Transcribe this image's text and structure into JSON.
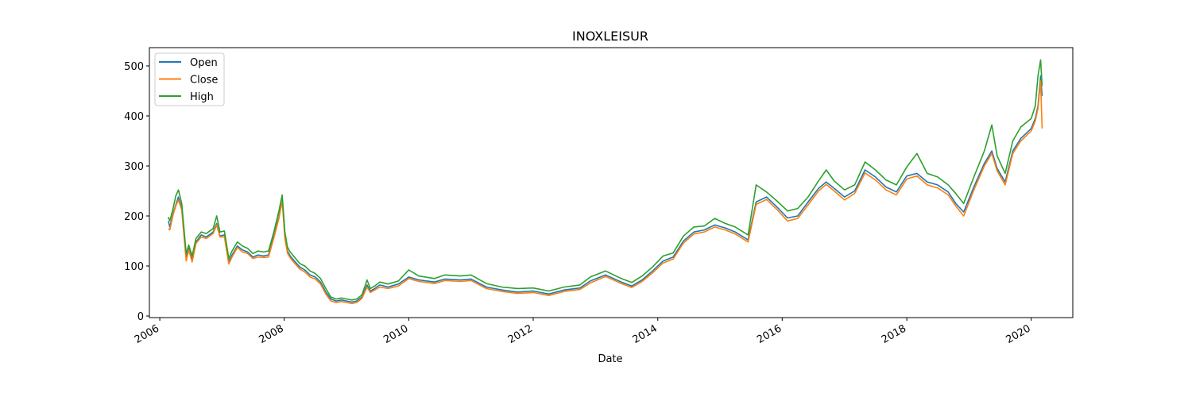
{
  "chart_data": {
    "type": "line",
    "title": "INOXLEISUR",
    "xlabel": "Date",
    "ylabel": "",
    "xlim": [
      "2005-11-01",
      "2020-09-01"
    ],
    "ylim": [
      0,
      530
    ],
    "x_ticks": [
      "2006",
      "2008",
      "2010",
      "2012",
      "2014",
      "2016",
      "2018",
      "2020"
    ],
    "y_ticks": [
      0,
      100,
      200,
      300,
      400,
      500
    ],
    "grid": false,
    "legend_position": "upper-left",
    "x": [
      "2006-02-20",
      "2006-03-01",
      "2006-03-20",
      "2006-04-05",
      "2006-04-20",
      "2006-05-10",
      "2006-06-05",
      "2006-06-20",
      "2006-07-10",
      "2006-08-01",
      "2006-09-01",
      "2006-10-01",
      "2006-11-10",
      "2006-12-01",
      "2006-12-20",
      "2007-01-15",
      "2007-02-10",
      "2007-03-01",
      "2007-04-01",
      "2007-05-01",
      "2007-06-01",
      "2007-07-01",
      "2007-08-01",
      "2007-09-01",
      "2007-10-01",
      "2007-11-01",
      "2007-12-01",
      "2007-12-20",
      "2008-01-05",
      "2008-01-20",
      "2008-02-05",
      "2008-03-01",
      "2008-04-01",
      "2008-05-01",
      "2008-06-01",
      "2008-07-01",
      "2008-08-01",
      "2008-09-01",
      "2008-10-01",
      "2008-11-01",
      "2008-12-01",
      "2009-01-01",
      "2009-02-01",
      "2009-03-01",
      "2009-04-01",
      "2009-05-01",
      "2009-05-20",
      "2009-06-15",
      "2009-07-15",
      "2009-09-01",
      "2009-11-01",
      "2010-01-01",
      "2010-03-01",
      "2010-06-01",
      "2010-08-01",
      "2010-11-01",
      "2011-01-01",
      "2011-04-01",
      "2011-07-01",
      "2011-10-01",
      "2012-01-01",
      "2012-04-01",
      "2012-07-01",
      "2012-10-01",
      "2012-12-01",
      "2013-03-01",
      "2013-06-01",
      "2013-08-01",
      "2013-10-01",
      "2013-12-01",
      "2014-02-01",
      "2014-04-01",
      "2014-06-01",
      "2014-08-01",
      "2014-10-01",
      "2014-12-01",
      "2015-02-01",
      "2015-04-01",
      "2015-06-15",
      "2015-08-01",
      "2015-10-01",
      "2015-12-01",
      "2016-02-01",
      "2016-04-01",
      "2016-06-01",
      "2016-08-01",
      "2016-09-15",
      "2016-11-01",
      "2017-01-01",
      "2017-03-01",
      "2017-05-01",
      "2017-07-01",
      "2017-09-01",
      "2017-11-01",
      "2018-01-01",
      "2018-03-01",
      "2018-05-01",
      "2018-07-01",
      "2018-09-01",
      "2018-10-15",
      "2018-12-01",
      "2019-02-01",
      "2019-04-01",
      "2019-05-15",
      "2019-06-15",
      "2019-08-01",
      "2019-09-15",
      "2019-11-01",
      "2020-01-01",
      "2020-01-25",
      "2020-02-10",
      "2020-02-25",
      "2020-03-05"
    ],
    "series": [
      {
        "name": "Open",
        "color": "#1f77b4",
        "values": [
          190,
          178,
          205,
          222,
          238,
          215,
          118,
          135,
          112,
          148,
          162,
          158,
          168,
          185,
          160,
          162,
          108,
          122,
          140,
          132,
          128,
          118,
          122,
          120,
          122,
          160,
          198,
          235,
          160,
          130,
          120,
          110,
          98,
          92,
          82,
          78,
          68,
          48,
          34,
          30,
          32,
          30,
          28,
          30,
          38,
          62,
          50,
          55,
          62,
          58,
          64,
          78,
          72,
          68,
          74,
          72,
          74,
          58,
          52,
          48,
          50,
          44,
          52,
          56,
          70,
          82,
          68,
          60,
          72,
          90,
          110,
          118,
          150,
          168,
          172,
          182,
          176,
          168,
          152,
          228,
          238,
          218,
          196,
          200,
          228,
          255,
          268,
          255,
          238,
          250,
          292,
          278,
          258,
          248,
          280,
          285,
          268,
          262,
          248,
          225,
          208,
          260,
          305,
          330,
          295,
          268,
          330,
          355,
          375,
          395,
          420,
          480,
          440
        ]
      },
      {
        "name": "Close",
        "color": "#ff7f0e",
        "values": [
          175,
          172,
          202,
          220,
          232,
          212,
          110,
          132,
          108,
          145,
          158,
          155,
          165,
          182,
          158,
          158,
          104,
          118,
          137,
          128,
          125,
          115,
          118,
          117,
          118,
          156,
          195,
          230,
          155,
          126,
          116,
          106,
          94,
          88,
          78,
          74,
          64,
          44,
          30,
          27,
          29,
          27,
          25,
          27,
          35,
          58,
          47,
          52,
          58,
          55,
          60,
          75,
          69,
          65,
          71,
          69,
          71,
          55,
          49,
          45,
          47,
          41,
          49,
          53,
          66,
          79,
          65,
          57,
          69,
          86,
          106,
          114,
          146,
          164,
          168,
          178,
          172,
          164,
          148,
          223,
          233,
          213,
          190,
          195,
          222,
          250,
          263,
          250,
          232,
          245,
          286,
          272,
          252,
          242,
          274,
          280,
          262,
          256,
          242,
          220,
          200,
          254,
          300,
          325,
          290,
          262,
          325,
          350,
          370,
          390,
          415,
          470,
          375
        ]
      },
      {
        "name": "High",
        "color": "#2ca02c",
        "values": [
          198,
          190,
          215,
          240,
          252,
          225,
          125,
          142,
          120,
          155,
          168,
          165,
          175,
          200,
          168,
          170,
          115,
          130,
          148,
          140,
          135,
          125,
          130,
          128,
          130,
          168,
          210,
          242,
          168,
          138,
          128,
          118,
          105,
          100,
          90,
          85,
          75,
          55,
          38,
          34,
          36,
          34,
          32,
          34,
          42,
          72,
          55,
          60,
          68,
          64,
          70,
          92,
          80,
          75,
          82,
          80,
          82,
          65,
          58,
          55,
          56,
          50,
          58,
          62,
          78,
          90,
          75,
          67,
          80,
          98,
          120,
          126,
          160,
          178,
          180,
          195,
          185,
          178,
          162,
          262,
          248,
          230,
          210,
          215,
          238,
          270,
          292,
          270,
          252,
          262,
          308,
          292,
          272,
          262,
          298,
          325,
          285,
          278,
          262,
          245,
          225,
          280,
          330,
          382,
          320,
          285,
          350,
          378,
          395,
          420,
          480,
          512,
          460
        ]
      }
    ]
  }
}
